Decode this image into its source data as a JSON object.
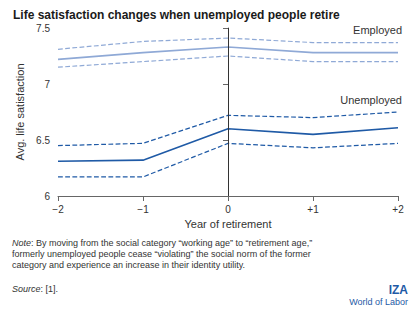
{
  "chart_data": {
    "type": "line",
    "title": "Life satisfaction changes when unemployed people retire",
    "x_label": "Year of retirement",
    "y_label": "Avg. life satisfaction",
    "x": [
      -2,
      -1,
      0,
      1,
      2
    ],
    "series": [
      {
        "name": "Employed",
        "color": "#8fa9d6",
        "values": [
          7.22,
          7.28,
          7.33,
          7.28,
          7.28
        ],
        "ci_upper": [
          7.31,
          7.38,
          7.41,
          7.37,
          7.37
        ],
        "ci_lower": [
          7.15,
          7.2,
          7.25,
          7.2,
          7.2
        ]
      },
      {
        "name": "Unemployed",
        "color": "#1f5aa6",
        "values": [
          6.31,
          6.32,
          6.6,
          6.55,
          6.61
        ],
        "ci_upper": [
          6.45,
          6.47,
          6.72,
          6.7,
          6.75
        ],
        "ci_lower": [
          6.17,
          6.17,
          6.47,
          6.43,
          6.47
        ]
      }
    ],
    "xlim": [
      -2,
      2
    ],
    "xticks": [
      {
        "value": -2,
        "label": "−2"
      },
      {
        "value": -1,
        "label": "−1"
      },
      0,
      {
        "value": 1,
        "label": "+1"
      },
      {
        "value": 2,
        "label": "+2"
      }
    ],
    "ylim": [
      6,
      7.5
    ],
    "yticks": [
      6,
      6.5,
      7,
      7.5
    ],
    "grid": false,
    "reference_line_x": 0
  },
  "note": "Note: By moving from the social category “working age” to “retirement age,” formerly unemployed people cease “violating” the social norm of the former category and experience an increase in their identity utility.",
  "source": "Source: [1].",
  "logo": [
    "IZA",
    "World of Labor"
  ]
}
